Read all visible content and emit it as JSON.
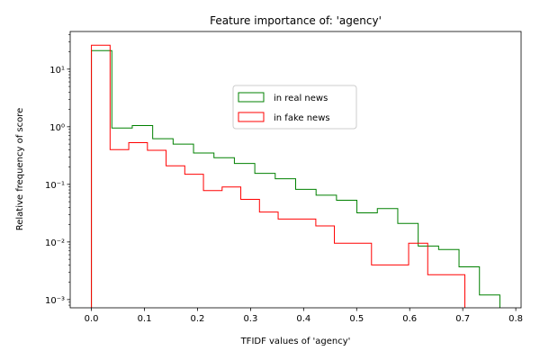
{
  "chart_data": {
    "type": "histogram-step",
    "title": "Feature importance of: 'agency'",
    "xlabel": "TFIDF values of 'agency'",
    "ylabel": "Relative frequency of score",
    "xlim": [
      -0.04,
      0.81
    ],
    "ylim": [
      0.00072,
      45
    ],
    "yscale": "log",
    "x_ticks": [
      0.0,
      0.1,
      0.2,
      0.3,
      0.4,
      0.5,
      0.6,
      0.7,
      0.8
    ],
    "x_tick_labels": [
      "0.0",
      "0.1",
      "0.2",
      "0.3",
      "0.4",
      "0.5",
      "0.6",
      "0.7",
      "0.8"
    ],
    "y_ticks": [
      0.001,
      0.01,
      0.1,
      1,
      10
    ],
    "y_tick_labels": [
      "10⁻³",
      "10⁻²",
      "10⁻¹",
      "10⁰",
      "10¹"
    ],
    "legend_position": "upper-center",
    "series": [
      {
        "name": "in real news",
        "color": "#008000",
        "bin_edges": [
          0.0,
          0.0385,
          0.077,
          0.1155,
          0.154,
          0.1925,
          0.231,
          0.2695,
          0.308,
          0.3465,
          0.385,
          0.4235,
          0.462,
          0.5005,
          0.539,
          0.5775,
          0.616,
          0.6545,
          0.693,
          0.7315,
          0.77
        ],
        "values": [
          21,
          0.95,
          1.05,
          0.62,
          0.5,
          0.35,
          0.29,
          0.23,
          0.155,
          0.125,
          0.082,
          0.065,
          0.053,
          0.032,
          0.038,
          0.021,
          0.0085,
          0.0074,
          0.0037,
          0.0012
        ]
      },
      {
        "name": "in fake news",
        "color": "#ff0000",
        "bin_edges": [
          0.0,
          0.0352,
          0.0704,
          0.1056,
          0.1408,
          0.176,
          0.2112,
          0.2464,
          0.2816,
          0.3168,
          0.352,
          0.388,
          0.423,
          0.458,
          0.493,
          0.528,
          0.563,
          0.598,
          0.634,
          0.669,
          0.704
        ],
        "values": [
          26,
          0.4,
          0.53,
          0.39,
          0.21,
          0.15,
          0.078,
          0.09,
          0.055,
          0.033,
          0.025,
          0.025,
          0.019,
          0.0095,
          0.0095,
          0.004,
          0.004,
          0.0095,
          0.0027,
          0.0027
        ]
      }
    ]
  }
}
